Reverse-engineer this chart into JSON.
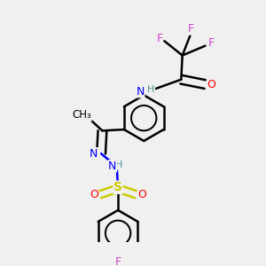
{
  "background_color": "#f0f0f0",
  "atom_colors": {
    "C": "#000000",
    "H": "#4a9090",
    "N": "#0000ff",
    "O": "#ff0000",
    "F": "#cc44cc",
    "S": "#cccc00"
  },
  "bond_color": "#000000",
  "figsize": [
    3.0,
    3.0
  ],
  "dpi": 100
}
